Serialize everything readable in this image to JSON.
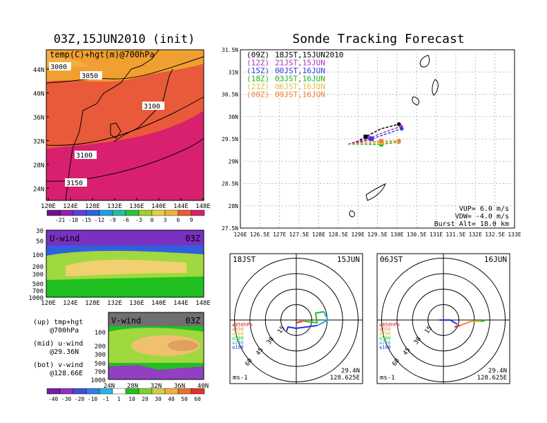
{
  "left_panel": {
    "title": "03Z,15JUN2010 (init)",
    "map_label": "temp(C)+hgt(m)@700hPa",
    "contours": [
      "3000",
      "3050",
      "3100",
      "3100",
      "3150"
    ],
    "lat_ticks": [
      "44N",
      "40N",
      "36N",
      "32N",
      "28N",
      "24N"
    ],
    "lon_ticks": [
      "120E",
      "124E",
      "128E",
      "132E",
      "136E",
      "140E",
      "144E",
      "148E"
    ],
    "colorbar_labels": [
      "-21",
      "-18",
      "-15",
      "-12",
      "-9",
      "-6",
      "-3",
      "0",
      "3",
      "6",
      "9"
    ],
    "colors": {
      "warm": "#f0a030",
      "hot": "#e85a3a",
      "hottest": "#d8206e"
    }
  },
  "uwind_panel": {
    "label": "U-wind",
    "time": "03Z",
    "y_ticks": [
      "30",
      "50",
      "100",
      "200",
      "300",
      "500",
      "700",
      "1000"
    ],
    "x_ticks": [
      "120E",
      "124E",
      "128E",
      "132E",
      "136E",
      "140E",
      "144E",
      "148E"
    ]
  },
  "vwind_panel": {
    "label": "V-wind",
    "time": "03Z",
    "y_ticks": [
      "100",
      "200",
      "300",
      "500",
      "700",
      "1000"
    ],
    "x_ticks": [
      "24N",
      "28N",
      "32N",
      "36N",
      "40N"
    ],
    "colorbar_labels": [
      "-40",
      "-30",
      "-20",
      "-10",
      "-1",
      "1",
      "10",
      "20",
      "30",
      "40",
      "50",
      "60"
    ]
  },
  "legend_notes": [
    {
      "line1": "(up) tmp+hgt",
      "line2": "@700hPa"
    },
    {
      "line1": "(mid) u-wind",
      "line2": "@29.36N"
    },
    {
      "line1": "(bot) v-wind",
      "line2": "@128.66E"
    }
  ],
  "track_panel": {
    "title": "Sonde Tracking Forecast",
    "legend": [
      {
        "code": "(09Z)",
        "text": "18JST,15JUN2010",
        "color": "#000000"
      },
      {
        "code": "(12Z)",
        "text": "21JST,15JUN",
        "color": "#b030c0"
      },
      {
        "code": "(15Z)",
        "text": "00JST,16JUN",
        "color": "#3040e0"
      },
      {
        "code": "(18Z)",
        "text": "03JST,16JUN",
        "color": "#20b020"
      },
      {
        "code": "(21Z)",
        "text": "06JST,16JUN",
        "color": "#e0c040"
      },
      {
        "code": "(00Z)",
        "text": "09JST,16JUN",
        "color": "#f08030"
      }
    ],
    "params": [
      "VUP= 6.0 m/s",
      "VDW= -4.0 m/s",
      "Burst Alt= 18.0 km"
    ]
  },
  "hodo_left": {
    "time": "18JST",
    "date": "15JUN",
    "lat": "29.4N",
    "lon": "128.625E",
    "unit": "ms-1",
    "rings": [
      "15",
      "30",
      "45",
      "60"
    ],
    "levels": [
      {
        "label": "≥850hPa",
        "color": "#e02020"
      },
      {
        "label": "≤850",
        "color": "#f08030"
      },
      {
        "label": "≤700",
        "color": "#d0c030"
      },
      {
        "label": "≤500",
        "color": "#20c020"
      },
      {
        "label": "≤250",
        "color": "#20b0d0"
      },
      {
        "label": "≤100",
        "color": "#2030e0"
      }
    ]
  },
  "hodo_right": {
    "time": "06JST",
    "date": "16JUN",
    "lat": "29.4N",
    "lon": "128.625E",
    "unit": "ms-1",
    "rings": [
      "15",
      "30",
      "45",
      "60"
    ],
    "levels": [
      {
        "label": "≥850hPa",
        "color": "#e02020"
      },
      {
        "label": "≤850",
        "color": "#f08030"
      },
      {
        "label": "≤700",
        "color": "#d0c030"
      },
      {
        "label": "≤500",
        "color": "#20c020"
      },
      {
        "label": "≤250",
        "color": "#20b0d0"
      },
      {
        "label": "≤100",
        "color": "#2030e0"
      }
    ]
  },
  "chart_data": {
    "type": "line",
    "title": "Sonde Tracking Forecast",
    "xlim": [
      126,
      133
    ],
    "ylim": [
      27.5,
      31.5
    ],
    "x_ticks": [
      "126E",
      "126.5E",
      "127E",
      "127.5E",
      "128E",
      "128.5E",
      "129E",
      "129.5E",
      "130E",
      "130.5E",
      "131E",
      "131.5E",
      "132E",
      "132.5E",
      "133E"
    ],
    "y_ticks": [
      "27.5N",
      "28N",
      "28.5N",
      "29N",
      "29.5N",
      "30N",
      "30.5N",
      "31N",
      "31.5N"
    ],
    "series": [
      {
        "name": "(09Z)",
        "color": "#000000",
        "x": [
          128.75,
          129.0,
          129.2,
          129.6,
          130.05
        ],
        "y": [
          29.38,
          29.45,
          29.55,
          29.73,
          29.83
        ]
      },
      {
        "name": "(12Z)",
        "color": "#b030c0",
        "x": [
          128.75,
          129.0,
          129.3,
          129.7,
          130.1
        ],
        "y": [
          29.38,
          29.44,
          29.52,
          29.66,
          29.78
        ]
      },
      {
        "name": "(15Z)",
        "color": "#3040e0",
        "x": [
          128.75,
          129.0,
          129.35,
          129.75,
          130.12
        ],
        "y": [
          29.38,
          29.42,
          29.5,
          29.62,
          29.73
        ]
      },
      {
        "name": "(18Z)",
        "color": "#20b020",
        "x": [
          128.75,
          129.2,
          129.6,
          130.05
        ],
        "y": [
          29.38,
          29.38,
          29.38,
          29.43
        ]
      },
      {
        "name": "(21Z)",
        "color": "#e0c040",
        "x": [
          128.75,
          129.2,
          129.6,
          130.05
        ],
        "y": [
          29.38,
          29.4,
          29.42,
          29.44
        ]
      },
      {
        "name": "(00Z)",
        "color": "#f08030",
        "x": [
          128.75,
          129.2,
          129.6,
          130.05
        ],
        "y": [
          29.38,
          29.43,
          29.45,
          29.46
        ]
      }
    ]
  }
}
